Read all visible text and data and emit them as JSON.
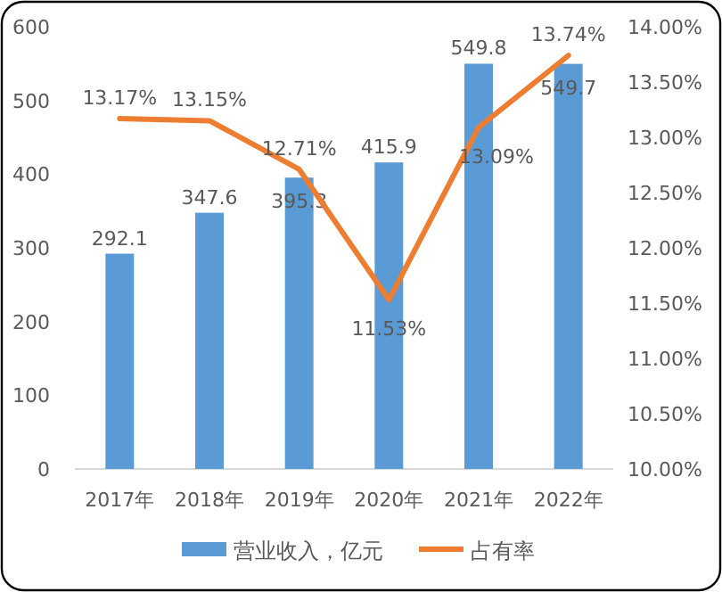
{
  "chart_data": {
    "type": "bar",
    "categories": [
      "2017年",
      "2018年",
      "2019年",
      "2020年",
      "2021年",
      "2022年"
    ],
    "series": [
      {
        "name": "营业收入，亿元",
        "color": "#5b9bd5",
        "values": [
          292.1,
          347.6,
          395.3,
          415.9,
          549.8,
          549.7
        ],
        "value_labels": [
          "292.1",
          "347.6",
          "395.3",
          "415.9",
          "549.8",
          "549.7"
        ]
      },
      {
        "name": "占有率",
        "type": "line",
        "axis": "y2",
        "color": "#ed7d31",
        "values": [
          13.17,
          13.15,
          12.71,
          11.53,
          13.09,
          13.74
        ],
        "value_labels": [
          "13.17%",
          "13.15%",
          "12.71%",
          "11.53%",
          "13.09%",
          "13.74%"
        ]
      }
    ],
    "ylim": [
      0,
      600
    ],
    "yticks": [
      0,
      100,
      200,
      300,
      400,
      500,
      600
    ],
    "y2lim": [
      10,
      14
    ],
    "y2ticks": [
      {
        "value": 10,
        "label": "10.00%"
      },
      {
        "value": 10.5,
        "label": "10.50%"
      },
      {
        "value": 11,
        "label": "11.00%"
      },
      {
        "value": 11.5,
        "label": "11.50%"
      },
      {
        "value": 12,
        "label": "12.00%"
      },
      {
        "value": 12.5,
        "label": "12.50%"
      },
      {
        "value": 13,
        "label": "13.00%"
      },
      {
        "value": 13.5,
        "label": "13.50%"
      },
      {
        "value": 14,
        "label": "14.00%"
      }
    ],
    "legend": "bottom"
  }
}
